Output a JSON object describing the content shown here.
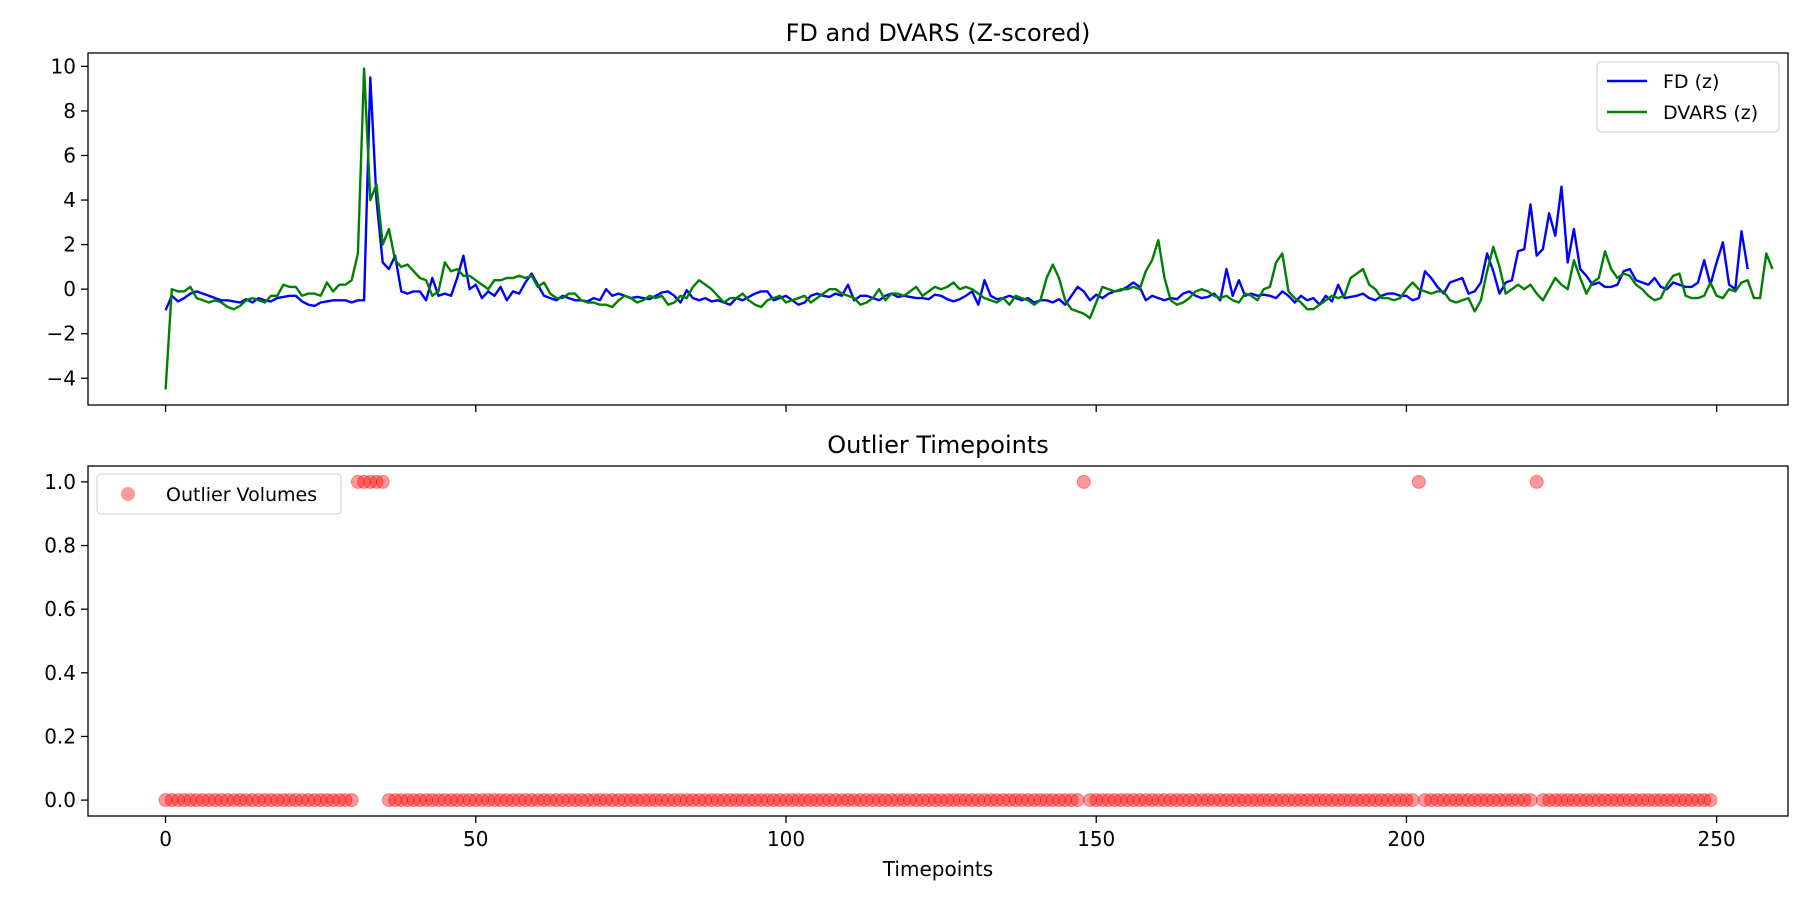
{
  "chart_data": [
    {
      "type": "line",
      "title": "FD and DVARS (Z-scored)",
      "xlabel": "",
      "ylabel": "",
      "xlim": [
        -12.5,
        261.5
      ],
      "ylim": [
        -5.2,
        10.6
      ],
      "xticks": [
        0,
        50,
        100,
        150,
        200,
        250
      ],
      "yticks": [
        -4,
        -2,
        0,
        2,
        4,
        6,
        8,
        10
      ],
      "ytick_labels": [
        "−4",
        "−2",
        "0",
        "2",
        "4",
        "6",
        "8",
        "10"
      ],
      "grid": false,
      "legend_position": "top-right",
      "colors": {
        "FD (z)": "#0000ff",
        "DVARS (z)": "#008000"
      },
      "series": [
        {
          "name": "FD (z)",
          "values": [
            -0.95,
            -0.3,
            -0.55,
            -0.4,
            -0.2,
            -0.1,
            -0.2,
            -0.3,
            -0.4,
            -0.5,
            -0.5,
            -0.55,
            -0.6,
            -0.45,
            -0.6,
            -0.4,
            -0.5,
            -0.55,
            -0.4,
            -0.35,
            -0.3,
            -0.3,
            -0.55,
            -0.7,
            -0.75,
            -0.6,
            -0.55,
            -0.5,
            -0.5,
            -0.5,
            -0.6,
            -0.5,
            -0.5,
            9.5,
            4.0,
            1.2,
            0.9,
            1.5,
            -0.1,
            -0.2,
            -0.1,
            -0.1,
            -0.5,
            0.5,
            -0.3,
            -0.2,
            -0.3,
            0.5,
            1.5,
            0.0,
            0.2,
            -0.4,
            -0.1,
            -0.3,
            0.1,
            -0.5,
            -0.1,
            -0.2,
            0.3,
            0.7,
            0.2,
            -0.3,
            -0.4,
            -0.5,
            -0.3,
            -0.4,
            -0.5,
            -0.5,
            -0.55,
            -0.4,
            -0.5,
            0.0,
            -0.3,
            -0.2,
            -0.3,
            -0.4,
            -0.35,
            -0.4,
            -0.45,
            -0.3,
            -0.15,
            -0.1,
            -0.3,
            -0.6,
            -0.05,
            -0.4,
            -0.5,
            -0.4,
            -0.55,
            -0.5,
            -0.6,
            -0.7,
            -0.4,
            -0.5,
            -0.35,
            -0.2,
            -0.1,
            -0.1,
            -0.5,
            -0.4,
            -0.3,
            -0.5,
            -0.7,
            -0.6,
            -0.3,
            -0.2,
            -0.3,
            -0.35,
            -0.2,
            -0.3,
            0.2,
            -0.5,
            -0.3,
            -0.3,
            -0.4,
            -0.5,
            -0.3,
            -0.2,
            -0.35,
            -0.3,
            -0.35,
            -0.4,
            -0.4,
            -0.45,
            -0.25,
            -0.3,
            -0.45,
            -0.55,
            -0.45,
            -0.3,
            -0.1,
            -0.7,
            0.4,
            -0.3,
            -0.45,
            -0.4,
            -0.3,
            -0.4,
            -0.5,
            -0.4,
            -0.6,
            -0.5,
            -0.5,
            -0.6,
            -0.45,
            -0.7,
            -0.3,
            0.1,
            -0.1,
            -0.5,
            -0.25,
            -0.4,
            -0.2,
            -0.1,
            -0.05,
            0.1,
            0.3,
            0.1,
            -0.5,
            -0.3,
            -0.4,
            -0.5,
            -0.4,
            -0.45,
            -0.2,
            -0.1,
            -0.3,
            -0.4,
            -0.35,
            -0.2,
            -0.5,
            0.9,
            -0.3,
            0.4,
            -0.3,
            -0.2,
            -0.3,
            -0.25,
            -0.3,
            -0.4,
            -0.1,
            -0.3,
            -0.6,
            -0.3,
            -0.5,
            -0.4,
            -0.7,
            -0.3,
            -0.55,
            0.2,
            -0.4,
            -0.35,
            -0.3,
            -0.2,
            -0.4,
            -0.5,
            -0.3,
            -0.2,
            -0.2,
            -0.3,
            -0.3,
            -0.5,
            -0.4,
            0.8,
            0.5,
            0.1,
            -0.2,
            0.3,
            0.4,
            0.5,
            -0.2,
            -0.1,
            0.3,
            1.6,
            0.8,
            -0.2,
            0.3,
            0.4,
            1.7,
            1.8,
            3.8,
            1.5,
            1.8,
            3.4,
            2.4,
            4.6,
            1.2,
            2.7,
            0.9,
            0.6,
            0.2,
            0.3,
            0.1,
            0.1,
            0.2,
            0.8,
            0.9,
            0.4,
            0.3,
            0.2,
            0.5,
            0.1,
            0.0,
            0.3,
            0.2,
            0.1,
            0.1,
            0.3,
            1.3,
            0.2,
            1.2,
            2.1,
            0.2,
            0.0,
            2.6,
            0.9
          ]
        },
        {
          "name": "DVARS (z)",
          "values": [
            -4.5,
            0.0,
            -0.1,
            -0.1,
            0.1,
            -0.4,
            -0.5,
            -0.6,
            -0.5,
            -0.6,
            -0.8,
            -0.9,
            -0.75,
            -0.5,
            -0.4,
            -0.5,
            -0.6,
            -0.3,
            -0.3,
            0.2,
            0.1,
            0.1,
            -0.3,
            -0.2,
            -0.2,
            -0.3,
            0.3,
            -0.1,
            0.2,
            0.2,
            0.4,
            1.6,
            9.9,
            4.0,
            4.7,
            2.0,
            2.7,
            1.3,
            1.0,
            1.1,
            0.8,
            0.5,
            0.4,
            -0.3,
            -0.1,
            1.2,
            0.8,
            0.9,
            0.6,
            0.6,
            0.4,
            0.2,
            0.0,
            0.4,
            0.4,
            0.5,
            0.5,
            0.6,
            0.5,
            0.6,
            0.1,
            0.3,
            -0.2,
            -0.4,
            -0.4,
            -0.2,
            -0.2,
            -0.5,
            -0.6,
            -0.6,
            -0.7,
            -0.7,
            -0.8,
            -0.5,
            -0.3,
            -0.4,
            -0.6,
            -0.5,
            -0.3,
            -0.4,
            -0.3,
            -0.7,
            -0.6,
            -0.3,
            -0.4,
            0.1,
            0.4,
            0.2,
            0.0,
            -0.3,
            -0.6,
            -0.4,
            -0.4,
            -0.2,
            -0.5,
            -0.7,
            -0.8,
            -0.5,
            -0.4,
            -0.3,
            -0.6,
            -0.5,
            -0.4,
            -0.3,
            -0.6,
            -0.4,
            -0.2,
            0.0,
            0.0,
            -0.2,
            -0.3,
            -0.4,
            -0.7,
            -0.6,
            -0.4,
            0.0,
            -0.5,
            -0.2,
            -0.2,
            -0.3,
            -0.1,
            0.1,
            -0.3,
            -0.1,
            0.1,
            0.0,
            0.1,
            0.3,
            0.0,
            0.1,
            0.0,
            -0.2,
            -0.4,
            -0.5,
            -0.6,
            -0.4,
            -0.7,
            -0.3,
            -0.4,
            -0.5,
            -0.7,
            -0.5,
            0.5,
            1.1,
            0.5,
            -0.5,
            -0.9,
            -1.0,
            -1.1,
            -1.3,
            -0.6,
            0.1,
            0.0,
            -0.1,
            0.0,
            0.0,
            0.1,
            0.0,
            0.8,
            1.3,
            2.2,
            0.5,
            -0.5,
            -0.7,
            -0.6,
            -0.4,
            -0.1,
            0.0,
            -0.1,
            -0.3,
            -0.4,
            -0.3,
            -0.5,
            -0.6,
            -0.2,
            -0.3,
            -0.5,
            0.0,
            0.1,
            1.2,
            1.6,
            -0.1,
            -0.4,
            -0.6,
            -0.9,
            -0.9,
            -0.7,
            -0.5,
            -0.3,
            -0.4,
            -0.3,
            0.5,
            0.7,
            0.9,
            0.2,
            0.0,
            -0.4,
            -0.4,
            -0.5,
            -0.4,
            0.0,
            0.3,
            0.0,
            -0.1,
            -0.2,
            -0.1,
            -0.1,
            -0.5,
            -0.6,
            -0.5,
            -0.4,
            -1.0,
            -0.5,
            0.8,
            1.9,
            1.0,
            -0.2,
            0.0,
            0.2,
            0.0,
            0.2,
            -0.2,
            -0.5,
            0.0,
            0.5,
            0.2,
            0.0,
            1.3,
            0.5,
            -0.2,
            0.3,
            0.5,
            1.7,
            0.9,
            0.5,
            0.7,
            0.6,
            0.2,
            0.0,
            -0.3,
            -0.5,
            -0.4,
            0.2,
            0.6,
            0.7,
            -0.3,
            -0.4,
            -0.4,
            -0.3,
            0.3,
            -0.3,
            -0.4,
            0.0,
            -0.1,
            0.3,
            0.4,
            -0.4,
            -0.4,
            1.6,
            0.9
          ]
        }
      ]
    },
    {
      "type": "scatter",
      "title": "Outlier Timepoints",
      "xlabel": "Timepoints",
      "ylabel": "",
      "xlim": [
        -12.5,
        261.5
      ],
      "ylim": [
        -0.05,
        1.05
      ],
      "xticks": [
        0,
        50,
        100,
        150,
        200,
        250
      ],
      "yticks": [
        0.0,
        0.2,
        0.4,
        0.6,
        0.8,
        1.0
      ],
      "ytick_labels": [
        "0.0",
        "0.2",
        "0.4",
        "0.6",
        "0.8",
        "1.0"
      ],
      "grid": false,
      "legend_position": "top-left",
      "colors": {
        "Outlier Volumes": "#ff0000"
      },
      "series": [
        {
          "name": "Outlier Volumes",
          "outlier_timepoints": [
            31,
            32,
            33,
            34,
            35,
            148,
            202,
            221
          ],
          "n_timepoints": 250
        }
      ]
    }
  ]
}
